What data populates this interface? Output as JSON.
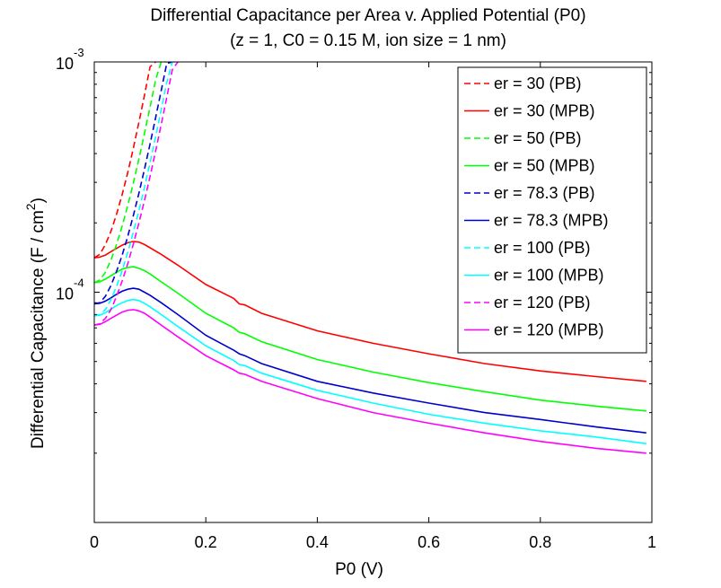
{
  "chart_data": {
    "type": "line",
    "title": "Differential Capacitance per Area v. Applied Potential (P0)",
    "subtitle": "(z = 1, C0 = 0.15 M, ion size = 1 nm)",
    "xlabel": "P0 (V)",
    "ylabel": "Differential Capacitance (F / cm",
    "ylabel_superscript": "2",
    "ylabel_close": ")",
    "xlim": [
      0,
      1
    ],
    "ylim": [
      1e-05,
      0.001
    ],
    "y_scale": "log",
    "grid": false,
    "legend_position": "top-right",
    "x_ticks": [
      {
        "value": 0,
        "label": "0"
      },
      {
        "value": 0.2,
        "label": "0.2"
      },
      {
        "value": 0.4,
        "label": "0.4"
      },
      {
        "value": 0.6,
        "label": "0.6"
      },
      {
        "value": 0.8,
        "label": "0.8"
      },
      {
        "value": 1,
        "label": "1"
      }
    ],
    "y_ticks": [
      {
        "value": 0.001,
        "base": "10",
        "exp": "-3"
      },
      {
        "value": 0.0001,
        "base": "10",
        "exp": "-4"
      }
    ],
    "series": [
      {
        "name": "er = 30 (PB)",
        "color": "#ff0000",
        "dash": true,
        "x": [
          0,
          0.01,
          0.02,
          0.03,
          0.04,
          0.05,
          0.06,
          0.07,
          0.08,
          0.09,
          0.1,
          0.11
        ],
        "y": [
          0.000141,
          0.000146,
          0.000161,
          0.000184,
          0.000218,
          0.000266,
          0.000331,
          0.000422,
          0.000547,
          0.000717,
          0.000952,
          0.001
        ]
      },
      {
        "name": "er = 30 (MPB)",
        "color": "#ff0000",
        "dash": false,
        "x": [
          0,
          0.01,
          0.02,
          0.03,
          0.04,
          0.05,
          0.06,
          0.07,
          0.08,
          0.09,
          0.1,
          0.12,
          0.15,
          0.2,
          0.25,
          0.26,
          0.27,
          0.3,
          0.4,
          0.5,
          0.6,
          0.7,
          0.8,
          0.9,
          0.99
        ],
        "y": [
          0.000141,
          0.000142,
          0.000145,
          0.00015,
          0.000155,
          0.00016,
          0.000164,
          0.000166,
          0.000165,
          0.000161,
          0.000156,
          0.000146,
          0.000131,
          0.000108,
          9.4e-05,
          8.9e-05,
          8.8e-05,
          8.1e-05,
          6.8e-05,
          6e-05,
          5.4e-05,
          4.9e-05,
          4.55e-05,
          4.3e-05,
          4.1e-05
        ]
      },
      {
        "name": "er = 50 (PB)",
        "color": "#00ff00",
        "dash": true,
        "x": [
          0,
          0.01,
          0.02,
          0.03,
          0.04,
          0.05,
          0.06,
          0.07,
          0.08,
          0.09,
          0.1,
          0.11,
          0.12,
          0.13
        ],
        "y": [
          0.00011,
          0.000113,
          0.000122,
          0.000138,
          0.000161,
          0.000194,
          0.000238,
          0.000298,
          0.000379,
          0.000489,
          0.000636,
          0.000836,
          0.001,
          0.001
        ]
      },
      {
        "name": "er = 50 (MPB)",
        "color": "#00ff00",
        "dash": false,
        "x": [
          0,
          0.01,
          0.02,
          0.03,
          0.04,
          0.05,
          0.06,
          0.07,
          0.08,
          0.09,
          0.1,
          0.12,
          0.15,
          0.2,
          0.25,
          0.26,
          0.27,
          0.3,
          0.4,
          0.5,
          0.6,
          0.7,
          0.8,
          0.9,
          0.99
        ],
        "y": [
          0.00011,
          0.000111,
          0.000114,
          0.000118,
          0.000122,
          0.000126,
          0.000128,
          0.000129,
          0.000127,
          0.000124,
          0.00012,
          0.000111,
          9.9e-05,
          8.1e-05,
          7e-05,
          6.7e-05,
          6.6e-05,
          6.1e-05,
          5.1e-05,
          4.5e-05,
          4.05e-05,
          3.7e-05,
          3.4e-05,
          3.2e-05,
          3.05e-05
        ]
      },
      {
        "name": "er = 78.3 (PB)",
        "color": "#0000cc",
        "dash": true,
        "x": [
          0,
          0.01,
          0.02,
          0.03,
          0.04,
          0.05,
          0.06,
          0.07,
          0.08,
          0.09,
          0.1,
          0.11,
          0.12,
          0.13,
          0.14
        ],
        "y": [
          8.9e-05,
          9e-05,
          9.6e-05,
          0.000107,
          0.000123,
          0.000145,
          0.000175,
          0.000215,
          0.000269,
          0.000342,
          0.00044,
          0.000572,
          0.000749,
          0.000985,
          0.001
        ]
      },
      {
        "name": "er = 78.3 (MPB)",
        "color": "#0000cc",
        "dash": false,
        "x": [
          0,
          0.01,
          0.02,
          0.03,
          0.04,
          0.05,
          0.06,
          0.07,
          0.08,
          0.09,
          0.1,
          0.12,
          0.15,
          0.2,
          0.25,
          0.26,
          0.27,
          0.3,
          0.4,
          0.5,
          0.6,
          0.7,
          0.8,
          0.9,
          0.99
        ],
        "y": [
          8.9e-05,
          8.95e-05,
          9.15e-05,
          9.45e-05,
          9.8e-05,
          0.000101,
          0.000103,
          0.000104,
          0.000103,
          0.0001,
          9.7e-05,
          9e-05,
          8e-05,
          6.5e-05,
          5.6e-05,
          5.4e-05,
          5.3e-05,
          4.9e-05,
          4.1e-05,
          3.65e-05,
          3.3e-05,
          3e-05,
          2.8e-05,
          2.6e-05,
          2.45e-05
        ]
      },
      {
        "name": "er = 100 (PB)",
        "color": "#00ffff",
        "dash": true,
        "x": [
          0,
          0.01,
          0.02,
          0.03,
          0.04,
          0.05,
          0.06,
          0.07,
          0.08,
          0.09,
          0.1,
          0.11,
          0.12,
          0.13,
          0.14,
          0.15
        ],
        "y": [
          7.9e-05,
          8e-05,
          8.4e-05,
          9.3e-05,
          0.000106,
          0.000124,
          0.000149,
          0.000182,
          0.000226,
          0.000285,
          0.000365,
          0.000473,
          0.000618,
          0.000812,
          0.001,
          0.001
        ]
      },
      {
        "name": "er = 100 (MPB)",
        "color": "#00ffff",
        "dash": false,
        "x": [
          0,
          0.01,
          0.02,
          0.03,
          0.04,
          0.05,
          0.06,
          0.07,
          0.08,
          0.09,
          0.1,
          0.12,
          0.15,
          0.2,
          0.25,
          0.26,
          0.27,
          0.3,
          0.4,
          0.5,
          0.6,
          0.7,
          0.8,
          0.9,
          0.99
        ],
        "y": [
          7.9e-05,
          7.95e-05,
          8.15e-05,
          8.45e-05,
          8.75e-05,
          9e-05,
          9.2e-05,
          9.3e-05,
          9.2e-05,
          8.95e-05,
          8.65e-05,
          8e-05,
          7.1e-05,
          5.85e-05,
          5.05e-05,
          4.85e-05,
          4.8e-05,
          4.45e-05,
          3.75e-05,
          3.3e-05,
          2.95e-05,
          2.7e-05,
          2.5e-05,
          2.35e-05,
          2.2e-05
        ]
      },
      {
        "name": "er = 120 (PB)",
        "color": "#ff00ff",
        "dash": true,
        "x": [
          0,
          0.01,
          0.02,
          0.03,
          0.04,
          0.05,
          0.06,
          0.07,
          0.08,
          0.09,
          0.1,
          0.11,
          0.12,
          0.13,
          0.14,
          0.15
        ],
        "y": [
          7.2e-05,
          7.3e-05,
          7.7e-05,
          8.4e-05,
          9.6e-05,
          0.000112,
          0.000133,
          0.000162,
          0.0002,
          0.00025,
          0.000318,
          0.00041,
          0.000534,
          0.000701,
          0.000925,
          0.001
        ]
      },
      {
        "name": "er = 120 (MPB)",
        "color": "#ff00ff",
        "dash": false,
        "x": [
          0,
          0.01,
          0.02,
          0.03,
          0.04,
          0.05,
          0.06,
          0.07,
          0.08,
          0.09,
          0.1,
          0.12,
          0.15,
          0.2,
          0.25,
          0.26,
          0.27,
          0.3,
          0.4,
          0.5,
          0.6,
          0.7,
          0.8,
          0.9,
          0.99
        ],
        "y": [
          7.2e-05,
          7.25e-05,
          7.45e-05,
          7.7e-05,
          7.95e-05,
          8.2e-05,
          8.35e-05,
          8.4e-05,
          8.3e-05,
          8.1e-05,
          7.8e-05,
          7.2e-05,
          6.4e-05,
          5.3e-05,
          4.6e-05,
          4.45e-05,
          4.4e-05,
          4.1e-05,
          3.45e-05,
          3e-05,
          2.7e-05,
          2.45e-05,
          2.25e-05,
          2.1e-05,
          2e-05
        ]
      }
    ]
  }
}
